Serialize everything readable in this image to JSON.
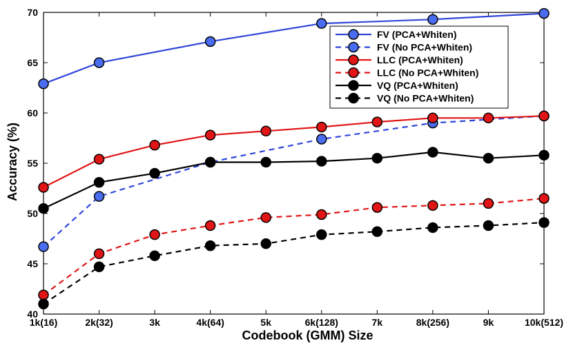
{
  "chart_data": {
    "type": "line",
    "title": "",
    "xlabel": "Codebook (GMM) Size",
    "ylabel": "Accuracy (%)",
    "categories": [
      "1k(16)",
      "2k(32)",
      "3k",
      "4k(64)",
      "5k",
      "6k(128)",
      "7k",
      "8k(256)",
      "9k",
      "10k(512)"
    ],
    "ylim": [
      40,
      70
    ],
    "yticks": [
      "40",
      "45",
      "50",
      "55",
      "60",
      "65",
      "70"
    ],
    "grid": false,
    "legend_position": "top-right",
    "series": [
      {
        "name": "FV (PCA+Whiten)",
        "color": "#2f45d8",
        "marker_fill": "#4a6df0",
        "dash": "solid",
        "values": [
          62.9,
          65.0,
          null,
          67.1,
          null,
          68.9,
          null,
          69.3,
          null,
          69.9
        ]
      },
      {
        "name": "FV (No PCA+Whiten)",
        "color": "#2f45d8",
        "marker_fill": "#4a6df0",
        "dash": "dashed",
        "values": [
          46.7,
          51.7,
          null,
          55.1,
          null,
          57.4,
          null,
          59.0,
          null,
          59.7
        ]
      },
      {
        "name": "LLC (PCA+Whiten)",
        "color": "#e01515",
        "marker_fill": "#e01515",
        "dash": "solid",
        "values": [
          52.6,
          55.4,
          56.8,
          57.8,
          58.2,
          58.6,
          59.1,
          59.5,
          59.5,
          59.7
        ]
      },
      {
        "name": "LLC (No PCA+Whiten)",
        "color": "#e01515",
        "marker_fill": "#e01515",
        "dash": "dashed",
        "values": [
          41.9,
          46.0,
          47.9,
          48.8,
          49.6,
          49.9,
          50.6,
          50.8,
          51.0,
          51.5
        ]
      },
      {
        "name": "VQ (PCA+Whiten)",
        "color": "#000000",
        "marker_fill": "#000000",
        "dash": "solid",
        "values": [
          50.5,
          53.1,
          54.0,
          55.1,
          55.1,
          55.2,
          55.5,
          56.1,
          55.5,
          55.8
        ]
      },
      {
        "name": "VQ (No PCA+Whiten)",
        "color": "#000000",
        "marker_fill": "#000000",
        "dash": "dashed",
        "values": [
          41.0,
          44.7,
          45.8,
          46.8,
          47.0,
          47.9,
          48.2,
          48.6,
          48.8,
          49.1
        ]
      }
    ]
  }
}
